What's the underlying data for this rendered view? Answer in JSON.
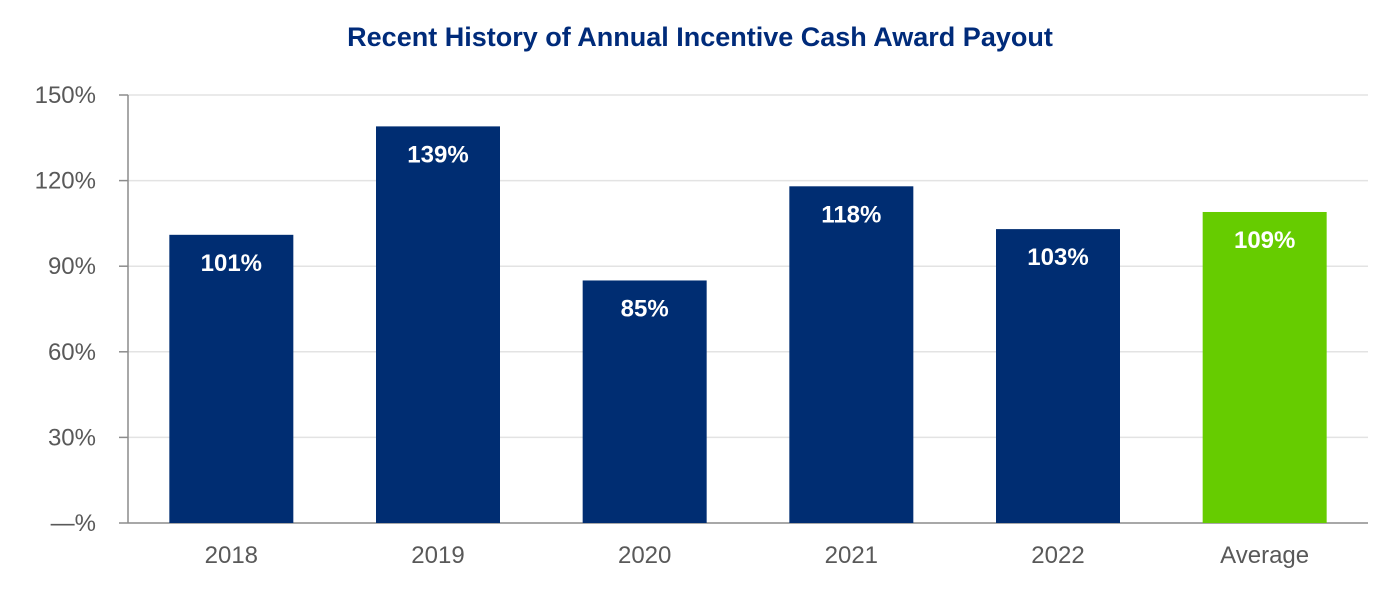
{
  "chart_data": {
    "type": "bar",
    "title": "Recent History of Annual Incentive Cash Award Payout",
    "xlabel": "",
    "ylabel": "",
    "categories": [
      "2018",
      "2019",
      "2020",
      "2021",
      "2022",
      "Average"
    ],
    "values": [
      101,
      139,
      85,
      118,
      103,
      109
    ],
    "data_labels": [
      "101%",
      "139%",
      "85%",
      "118%",
      "103%",
      "109%"
    ],
    "ylim": [
      0,
      150
    ],
    "yticks": [
      0,
      30,
      60,
      90,
      120,
      150
    ],
    "ytick_labels": [
      "—%",
      "30%",
      "60%",
      "90%",
      "120%",
      "150%"
    ],
    "grid": true,
    "colors": {
      "bar": "#002d72",
      "highlight": "#66cc00",
      "title": "#002b7a",
      "grid": "#e3e3e3",
      "axis": "#8c8c8c",
      "tick_text": "#595959",
      "label_text": "#ffffff"
    },
    "highlight_category": "Average"
  }
}
